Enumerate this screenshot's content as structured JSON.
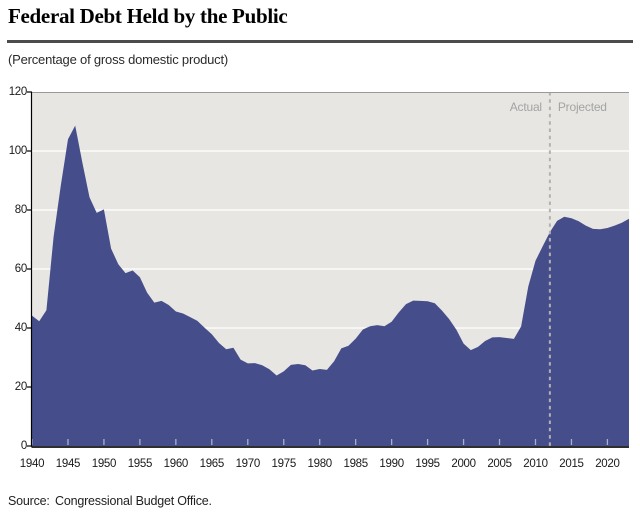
{
  "header": {
    "title": "Federal Debt Held by the Public",
    "subtitle": "(Percentage of gross domestic product)"
  },
  "annotations": {
    "actual": "Actual",
    "projected": "Projected"
  },
  "source": {
    "label": "Source:",
    "text": "Congressional Budget Office."
  },
  "colors": {
    "area": "#454E8A",
    "plot_background": "#E7E6E2",
    "gridline": "#FFFFFF",
    "boundary_dash": "#B2B2B2",
    "annotation_text": "#A3A3A3",
    "axis_line": "#000000",
    "bottom_spine": "#2E2E2E",
    "top_border": "#9A9A9A",
    "inner_tick": "rgba(255,255,255,0.55)"
  },
  "chart_data": {
    "type": "area",
    "title": "Federal Debt Held by the Public",
    "subtitle": "(Percentage of gross domestic product)",
    "series_name": "Federal debt held by the public (% of GDP)",
    "xlabel": "",
    "ylabel": "Percentage of gross domestic product",
    "ylim": [
      0,
      120
    ],
    "yticks": [
      0,
      20,
      40,
      60,
      80,
      100,
      120
    ],
    "xlim": [
      1940,
      2023
    ],
    "xticks": [
      1940,
      1945,
      1950,
      1955,
      1960,
      1965,
      1970,
      1975,
      1980,
      1985,
      1990,
      1995,
      2000,
      2005,
      2010,
      2015,
      2020
    ],
    "grid": "horizontal white gridlines on gray panel",
    "legend": "none",
    "boundary_year": 2012,
    "x": [
      1940,
      1941,
      1942,
      1943,
      1944,
      1945,
      1946,
      1947,
      1948,
      1949,
      1950,
      1951,
      1952,
      1953,
      1954,
      1955,
      1956,
      1957,
      1958,
      1959,
      1960,
      1961,
      1962,
      1963,
      1964,
      1965,
      1966,
      1967,
      1968,
      1969,
      1970,
      1971,
      1972,
      1973,
      1974,
      1975,
      1976,
      1977,
      1978,
      1979,
      1980,
      1981,
      1982,
      1983,
      1984,
      1985,
      1986,
      1987,
      1988,
      1989,
      1990,
      1991,
      1992,
      1993,
      1994,
      1995,
      1996,
      1997,
      1998,
      1999,
      2000,
      2001,
      2002,
      2003,
      2004,
      2005,
      2006,
      2007,
      2008,
      2009,
      2010,
      2011,
      2012,
      2013,
      2014,
      2015,
      2016,
      2017,
      2018,
      2019,
      2020,
      2021,
      2022,
      2023
    ],
    "values": [
      44.2,
      42.3,
      46.0,
      70.9,
      88.3,
      104.0,
      108.6,
      96.2,
      84.3,
      79.0,
      80.2,
      66.9,
      61.6,
      58.6,
      59.5,
      57.2,
      52.0,
      48.6,
      49.2,
      47.8,
      45.6,
      44.9,
      43.7,
      42.4,
      40.1,
      37.9,
      34.9,
      32.8,
      33.3,
      29.3,
      28.0,
      28.1,
      27.4,
      26.0,
      23.9,
      25.3,
      27.5,
      27.8,
      27.4,
      25.6,
      26.1,
      25.8,
      28.7,
      33.1,
      34.0,
      36.4,
      39.5,
      40.6,
      41.0,
      40.6,
      42.1,
      45.3,
      48.1,
      49.3,
      49.2,
      49.1,
      48.4,
      45.9,
      43.0,
      39.4,
      34.7,
      32.5,
      33.6,
      35.6,
      36.8,
      36.9,
      36.6,
      36.3,
      40.5,
      54.1,
      62.8,
      67.7,
      72.5,
      76.3,
      77.7,
      77.2,
      76.2,
      74.7,
      73.6,
      73.5,
      73.9,
      74.7,
      75.7,
      77.0
    ]
  }
}
